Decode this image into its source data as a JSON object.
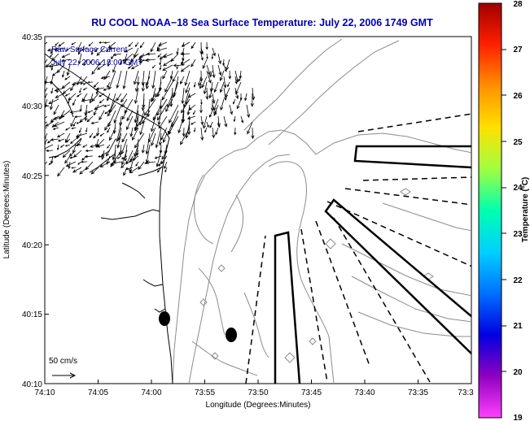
{
  "title": "RU COOL   NOAA−18  Sea Surface Temperature:  July 22, 2006 1749 GMT",
  "annotation_line1": "Raw Surface Current",
  "annotation_line2": "July 22, 2006 18:00 GMT",
  "scale_label": "50 cm/s",
  "x_axis_label": "Longitude (Degrees:Minutes)",
  "y_axis_label": "Latitude (Degrees:Minutes)",
  "x_ticks": [
    "74:10",
    "74:05",
    "74:00",
    "73:55",
    "73:50",
    "73:45",
    "73:40",
    "73:35",
    "73:3"
  ],
  "y_ticks": [
    "40:35",
    "40:30",
    "40:25",
    "40:20",
    "40:15",
    "40:10"
  ],
  "colorbar": {
    "label": "Temperature (°C)",
    "min": 19,
    "max": 28,
    "ticks": [
      "28",
      "27",
      "26",
      "25",
      "24",
      "23",
      "22",
      "21",
      "20",
      "19"
    ],
    "stops": [
      "#a00000",
      "#ff2000",
      "#ff9000",
      "#ffe000",
      "#a0ff40",
      "#00ffb0",
      "#00d0ff",
      "#0070ff",
      "#0000e0",
      "#9000c0",
      "#ff40ff"
    ]
  },
  "colors": {
    "title": "#0000aa",
    "contour": "#888888",
    "coast": "#000000"
  }
}
